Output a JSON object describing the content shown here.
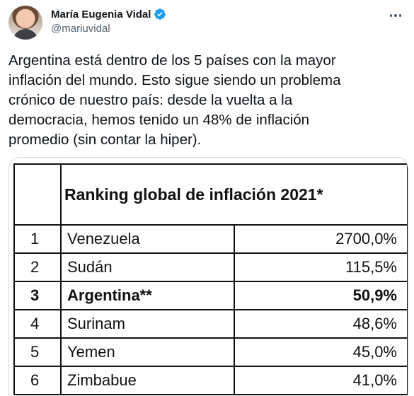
{
  "tweet": {
    "author_name": "María Eugenia Vidal",
    "author_handle": "@mariuvidal",
    "verified_icon": "verified-badge-icon",
    "more_icon": "more-options-icon",
    "text": "Argentina está dentro de los 5 países con la mayor\ninflación del mundo. Esto sigue siendo un problema\ncrónico de nuestro país: desde la vuelta a la\ndemocracia, hemos tenido un 48% de inflación\npromedio (sin contar la hiper)."
  },
  "media": {
    "title": "Ranking global de inflación 2021*",
    "rows": [
      {
        "rank": "1",
        "country": "Venezuela",
        "value": "2700,0%"
      },
      {
        "rank": "2",
        "country": "Sudán",
        "value": "115,5%"
      },
      {
        "rank": "3",
        "country": "Argentina**",
        "value": "50,9%"
      },
      {
        "rank": "4",
        "country": "Surinam",
        "value": "48,6%"
      },
      {
        "rank": "5",
        "country": "Yemen",
        "value": "45,0%"
      },
      {
        "rank": "6",
        "country": "Zimbabue",
        "value": "41,0%"
      }
    ]
  },
  "colors": {
    "text": "#0f1419",
    "secondary": "#536471",
    "verified": "#1d9bf0",
    "border": "#cfd9de"
  }
}
